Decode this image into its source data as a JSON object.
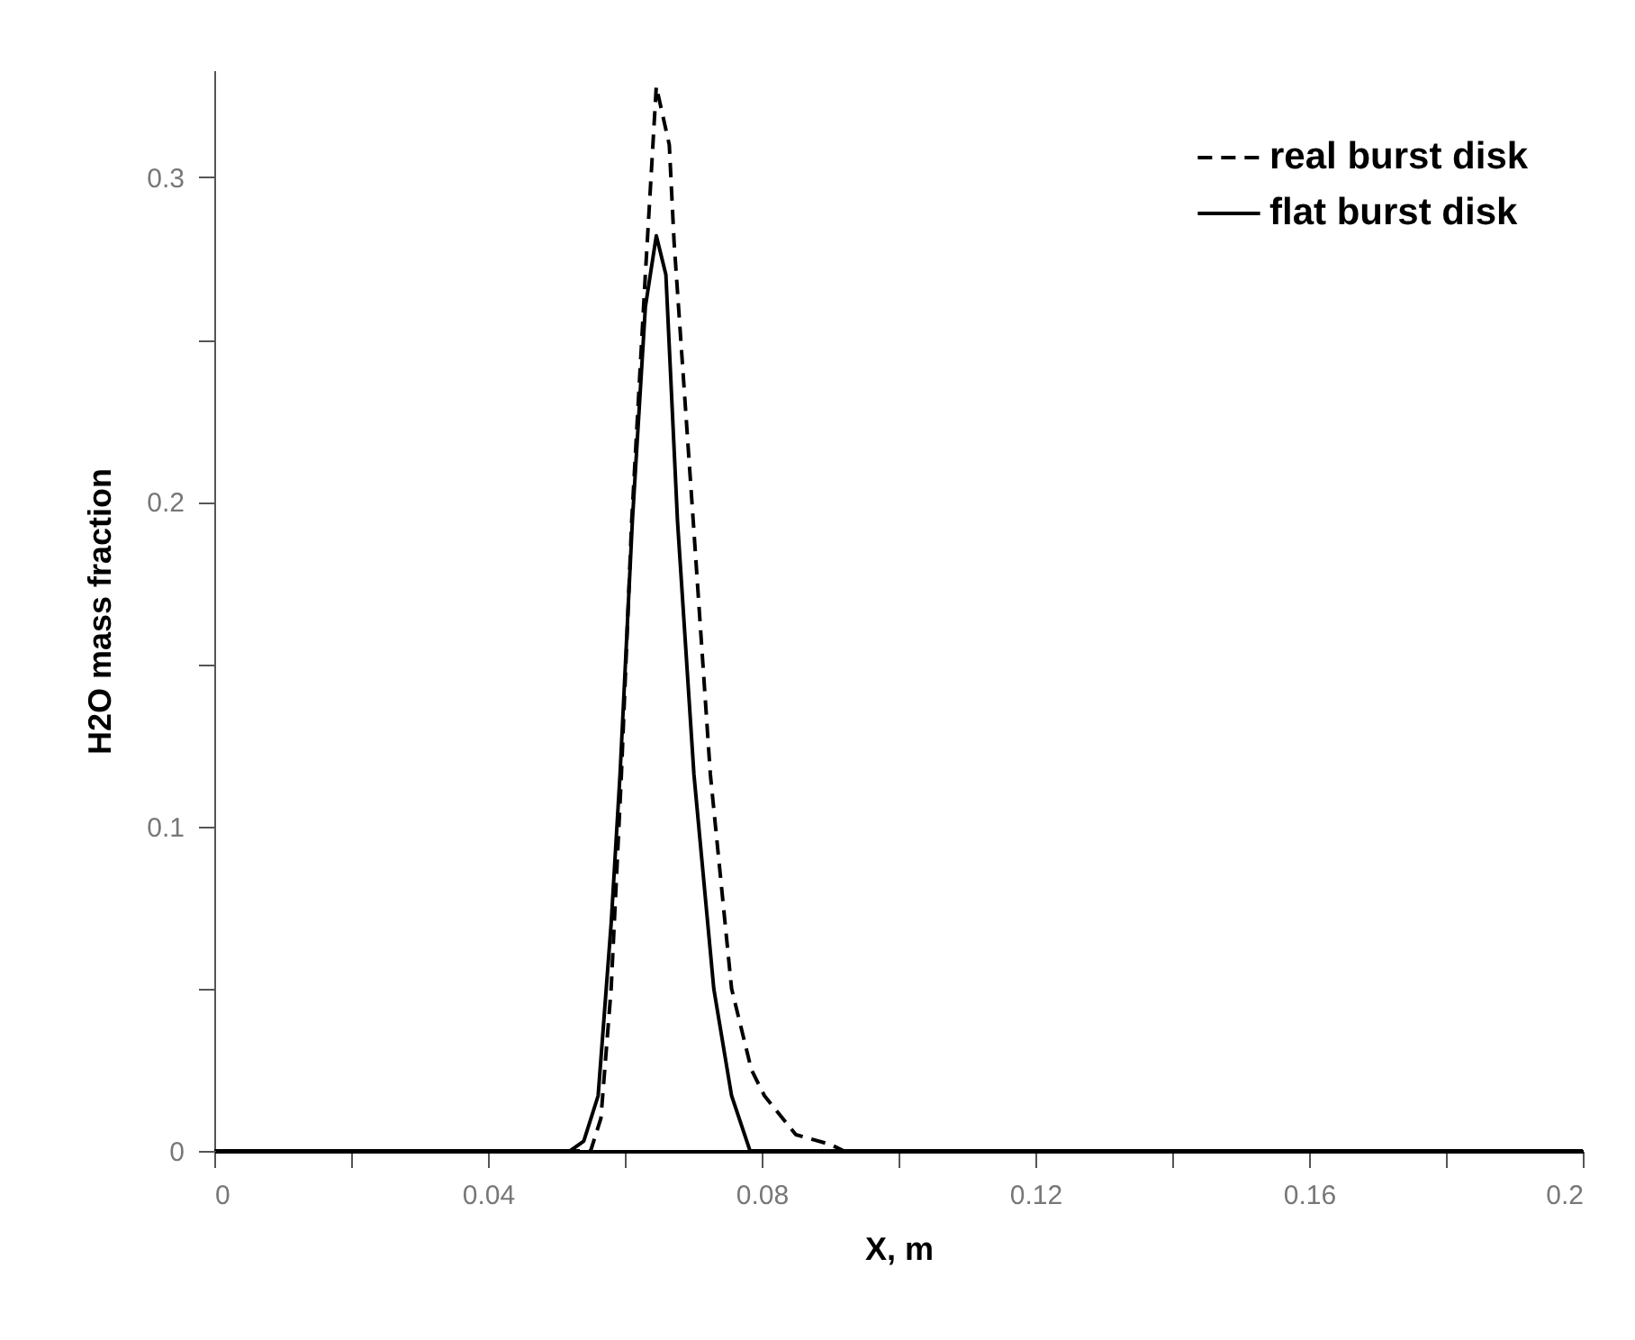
{
  "chart_data": {
    "type": "line",
    "xlabel": "X, m",
    "ylabel": "H2O mass fraction",
    "xlim": [
      0,
      0.2
    ],
    "ylim": [
      0,
      0.333
    ],
    "xticks": [
      0,
      {
        "value": 0.02,
        "label": null
      },
      0.04,
      {
        "value": 0.06,
        "label": null
      },
      0.08,
      {
        "value": 0.1,
        "label": null
      },
      0.12,
      {
        "value": 0.14,
        "label": null
      },
      0.16,
      {
        "value": 0.18,
        "label": null
      },
      0.2
    ],
    "yticks": [
      0,
      {
        "value": 0.05,
        "label": null
      },
      0.1,
      {
        "value": 0.15,
        "label": null
      },
      0.2,
      {
        "value": 0.25,
        "label": null
      },
      0.3
    ],
    "grid": false,
    "legend": "top right",
    "marker": "none",
    "series": [
      {
        "name": "real burst disk",
        "color": "#000000",
        "line_style": "dashed",
        "x": [
          0,
          0.055,
          0.0565,
          0.058,
          0.0595,
          0.061,
          0.063,
          0.0646,
          0.0665,
          0.0672,
          0.07,
          0.0725,
          0.0756,
          0.0785,
          0.0804,
          0.085,
          0.09,
          0.092,
          0.2
        ],
        "values": [
          0,
          0,
          0.01,
          0.05,
          0.116,
          0.194,
          0.27,
          0.328,
          0.31,
          0.28,
          0.194,
          0.116,
          0.05,
          0.025,
          0.017,
          0.005,
          0.002,
          0,
          0
        ]
      },
      {
        "name": "flat burst disk",
        "color": "#000000",
        "line_style": "solid",
        "x": [
          0,
          0.052,
          0.054,
          0.0561,
          0.058,
          0.0593,
          0.0611,
          0.063,
          0.0646,
          0.066,
          0.0677,
          0.0701,
          0.073,
          0.0756,
          0.0783,
          0.2
        ],
        "values": [
          0,
          0,
          0.003,
          0.017,
          0.07,
          0.116,
          0.194,
          0.26,
          0.282,
          0.27,
          0.194,
          0.116,
          0.05,
          0.017,
          0,
          0
        ]
      }
    ]
  }
}
